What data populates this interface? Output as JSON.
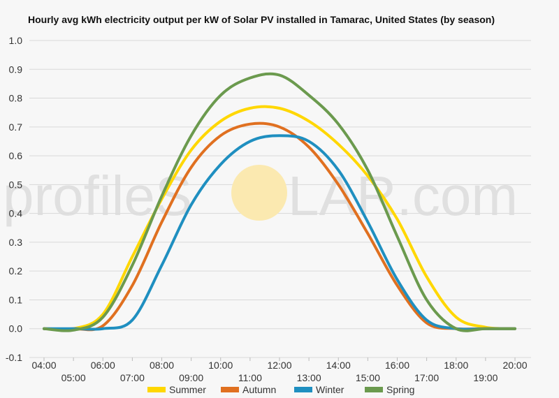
{
  "chart_data": {
    "type": "line",
    "title": "Hourly avg kWh electricity output per kW of Solar PV installed in Tamarac, United States (by season)",
    "xlabel": "",
    "ylabel": "",
    "x": [
      "04:00",
      "05:00",
      "06:00",
      "07:00",
      "08:00",
      "09:00",
      "10:00",
      "11:00",
      "12:00",
      "13:00",
      "14:00",
      "15:00",
      "16:00",
      "17:00",
      "18:00",
      "19:00",
      "20:00"
    ],
    "ylim": [
      -0.1,
      1.0
    ],
    "yticks": [
      "-0.1",
      "0.0",
      "0.1",
      "0.2",
      "0.3",
      "0.4",
      "0.5",
      "0.6",
      "0.7",
      "0.8",
      "0.9",
      "1.0"
    ],
    "grid": true,
    "legend_position": "bottom",
    "series": [
      {
        "name": "Summer",
        "color": "#FFD700",
        "values": [
          0.0,
          0.0,
          0.05,
          0.25,
          0.45,
          0.62,
          0.72,
          0.765,
          0.765,
          0.72,
          0.64,
          0.53,
          0.38,
          0.18,
          0.04,
          0.005,
          0.0
        ]
      },
      {
        "name": "Autumn",
        "color": "#E07020",
        "values": [
          0.0,
          0.0,
          0.01,
          0.15,
          0.37,
          0.56,
          0.67,
          0.71,
          0.7,
          0.63,
          0.5,
          0.33,
          0.15,
          0.02,
          0.0,
          0.0,
          0.0
        ]
      },
      {
        "name": "Winter",
        "color": "#1F8FC0",
        "values": [
          0.0,
          0.0,
          0.0,
          0.03,
          0.22,
          0.43,
          0.57,
          0.65,
          0.67,
          0.65,
          0.55,
          0.37,
          0.17,
          0.03,
          0.0,
          0.0,
          0.0
        ]
      },
      {
        "name": "Spring",
        "color": "#6B9A4E",
        "values": [
          0.0,
          -0.005,
          0.04,
          0.22,
          0.46,
          0.67,
          0.81,
          0.87,
          0.88,
          0.81,
          0.71,
          0.55,
          0.32,
          0.1,
          0.0,
          0.0,
          0.0
        ]
      }
    ]
  },
  "watermark": {
    "text_left": "profileS",
    "text_right": "LAR.com",
    "sun_color": "#fbe9b0"
  }
}
